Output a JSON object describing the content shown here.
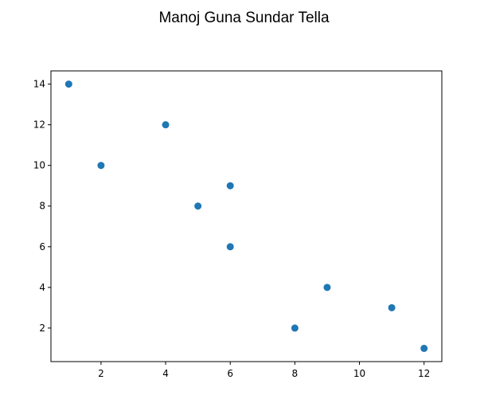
{
  "chart_data": {
    "type": "scatter",
    "title": "Manoj Guna Sundar Tella",
    "xlabel": "",
    "ylabel": "",
    "x": [
      1,
      2,
      4,
      5,
      6,
      6,
      8,
      9,
      11,
      12
    ],
    "y": [
      14,
      10,
      12,
      8,
      9,
      6,
      2,
      4,
      3,
      1
    ],
    "xlim": [
      0.45,
      12.55
    ],
    "ylim": [
      0.35,
      14.65
    ],
    "xticks": [
      2,
      4,
      6,
      8,
      10,
      12
    ],
    "yticks": [
      2,
      4,
      6,
      8,
      10,
      12,
      14
    ],
    "marker_color": "#1f77b4",
    "grid": false,
    "legend": false
  }
}
